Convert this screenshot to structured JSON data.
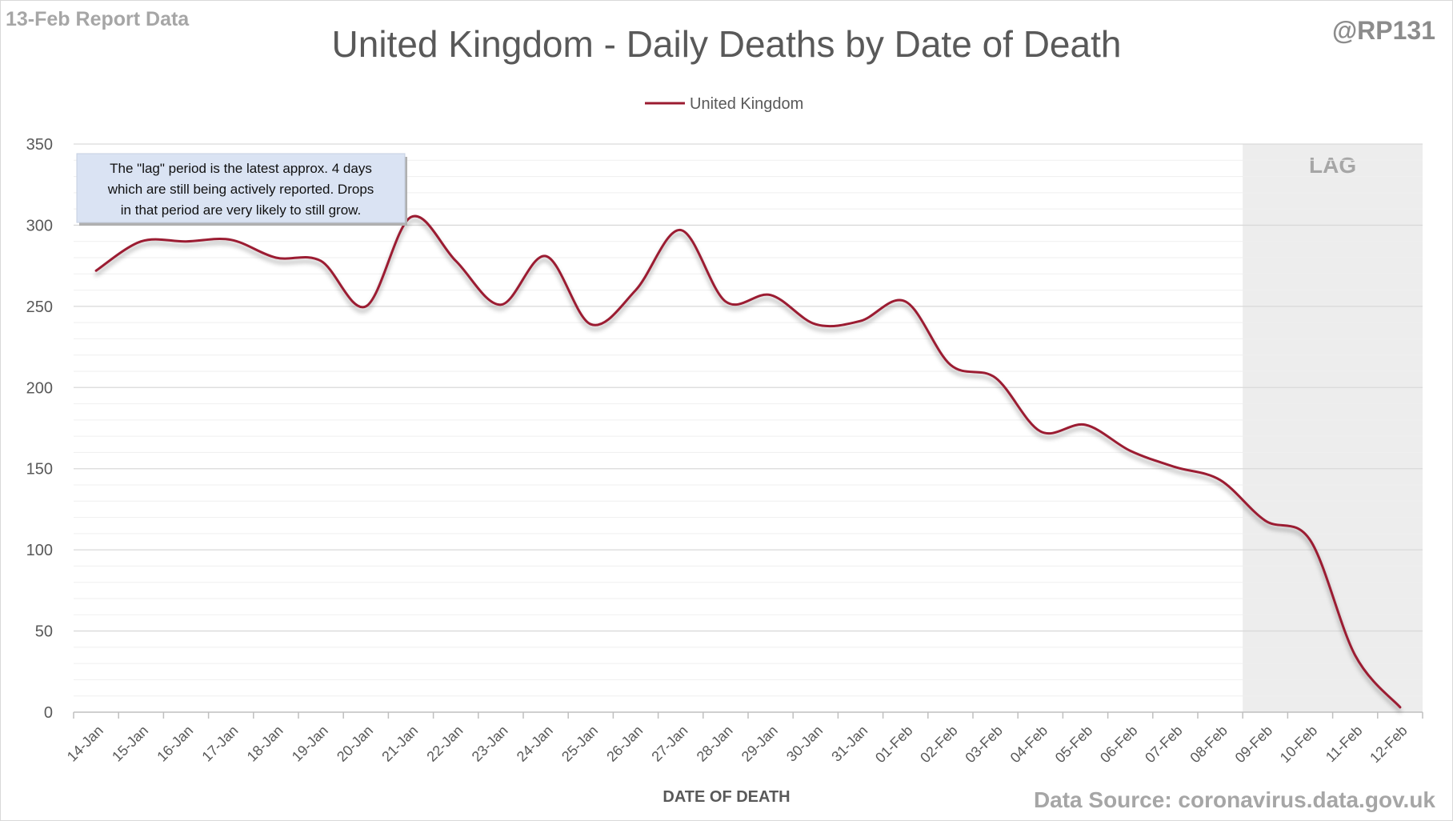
{
  "header": {
    "report_label": "13-Feb Report Data",
    "handle": "@RP131",
    "title": "United Kingdom - Daily Deaths by Date of Death"
  },
  "footer": {
    "source": "Data Source: coronavirus.data.gov.uk"
  },
  "annotation": {
    "lines": [
      "The \"lag\" period is the latest approx. 4 days",
      "which are still being actively reported.  Drops",
      "in that period are very likely to still grow."
    ]
  },
  "chart_data": {
    "type": "line",
    "categories": [
      "14-Jan",
      "15-Jan",
      "16-Jan",
      "17-Jan",
      "18-Jan",
      "19-Jan",
      "20-Jan",
      "21-Jan",
      "22-Jan",
      "23-Jan",
      "24-Jan",
      "25-Jan",
      "26-Jan",
      "27-Jan",
      "28-Jan",
      "29-Jan",
      "30-Jan",
      "31-Jan",
      "01-Feb",
      "02-Feb",
      "03-Feb",
      "04-Feb",
      "05-Feb",
      "06-Feb",
      "07-Feb",
      "08-Feb",
      "09-Feb",
      "10-Feb",
      "11-Feb",
      "12-Feb"
    ],
    "series": [
      {
        "name": "United Kingdom",
        "color": "#9b1b30",
        "values": [
          272,
          290,
          290,
          291,
          280,
          278,
          250,
          305,
          278,
          251,
          281,
          239,
          260,
          297,
          253,
          257,
          239,
          241,
          253,
          214,
          206,
          173,
          177,
          161,
          151,
          143,
          118,
          106,
          35,
          3
        ]
      }
    ],
    "xlabel": "DATE OF DEATH",
    "ylabel": "",
    "ylim": [
      0,
      350
    ],
    "yticks": [
      0,
      50,
      100,
      150,
      200,
      250,
      300,
      350
    ],
    "minor_grid_step": 10,
    "grid": true,
    "legend": "top-center",
    "lag_region": {
      "label": "LAG",
      "from_index": 26,
      "color": "#ededed"
    }
  }
}
